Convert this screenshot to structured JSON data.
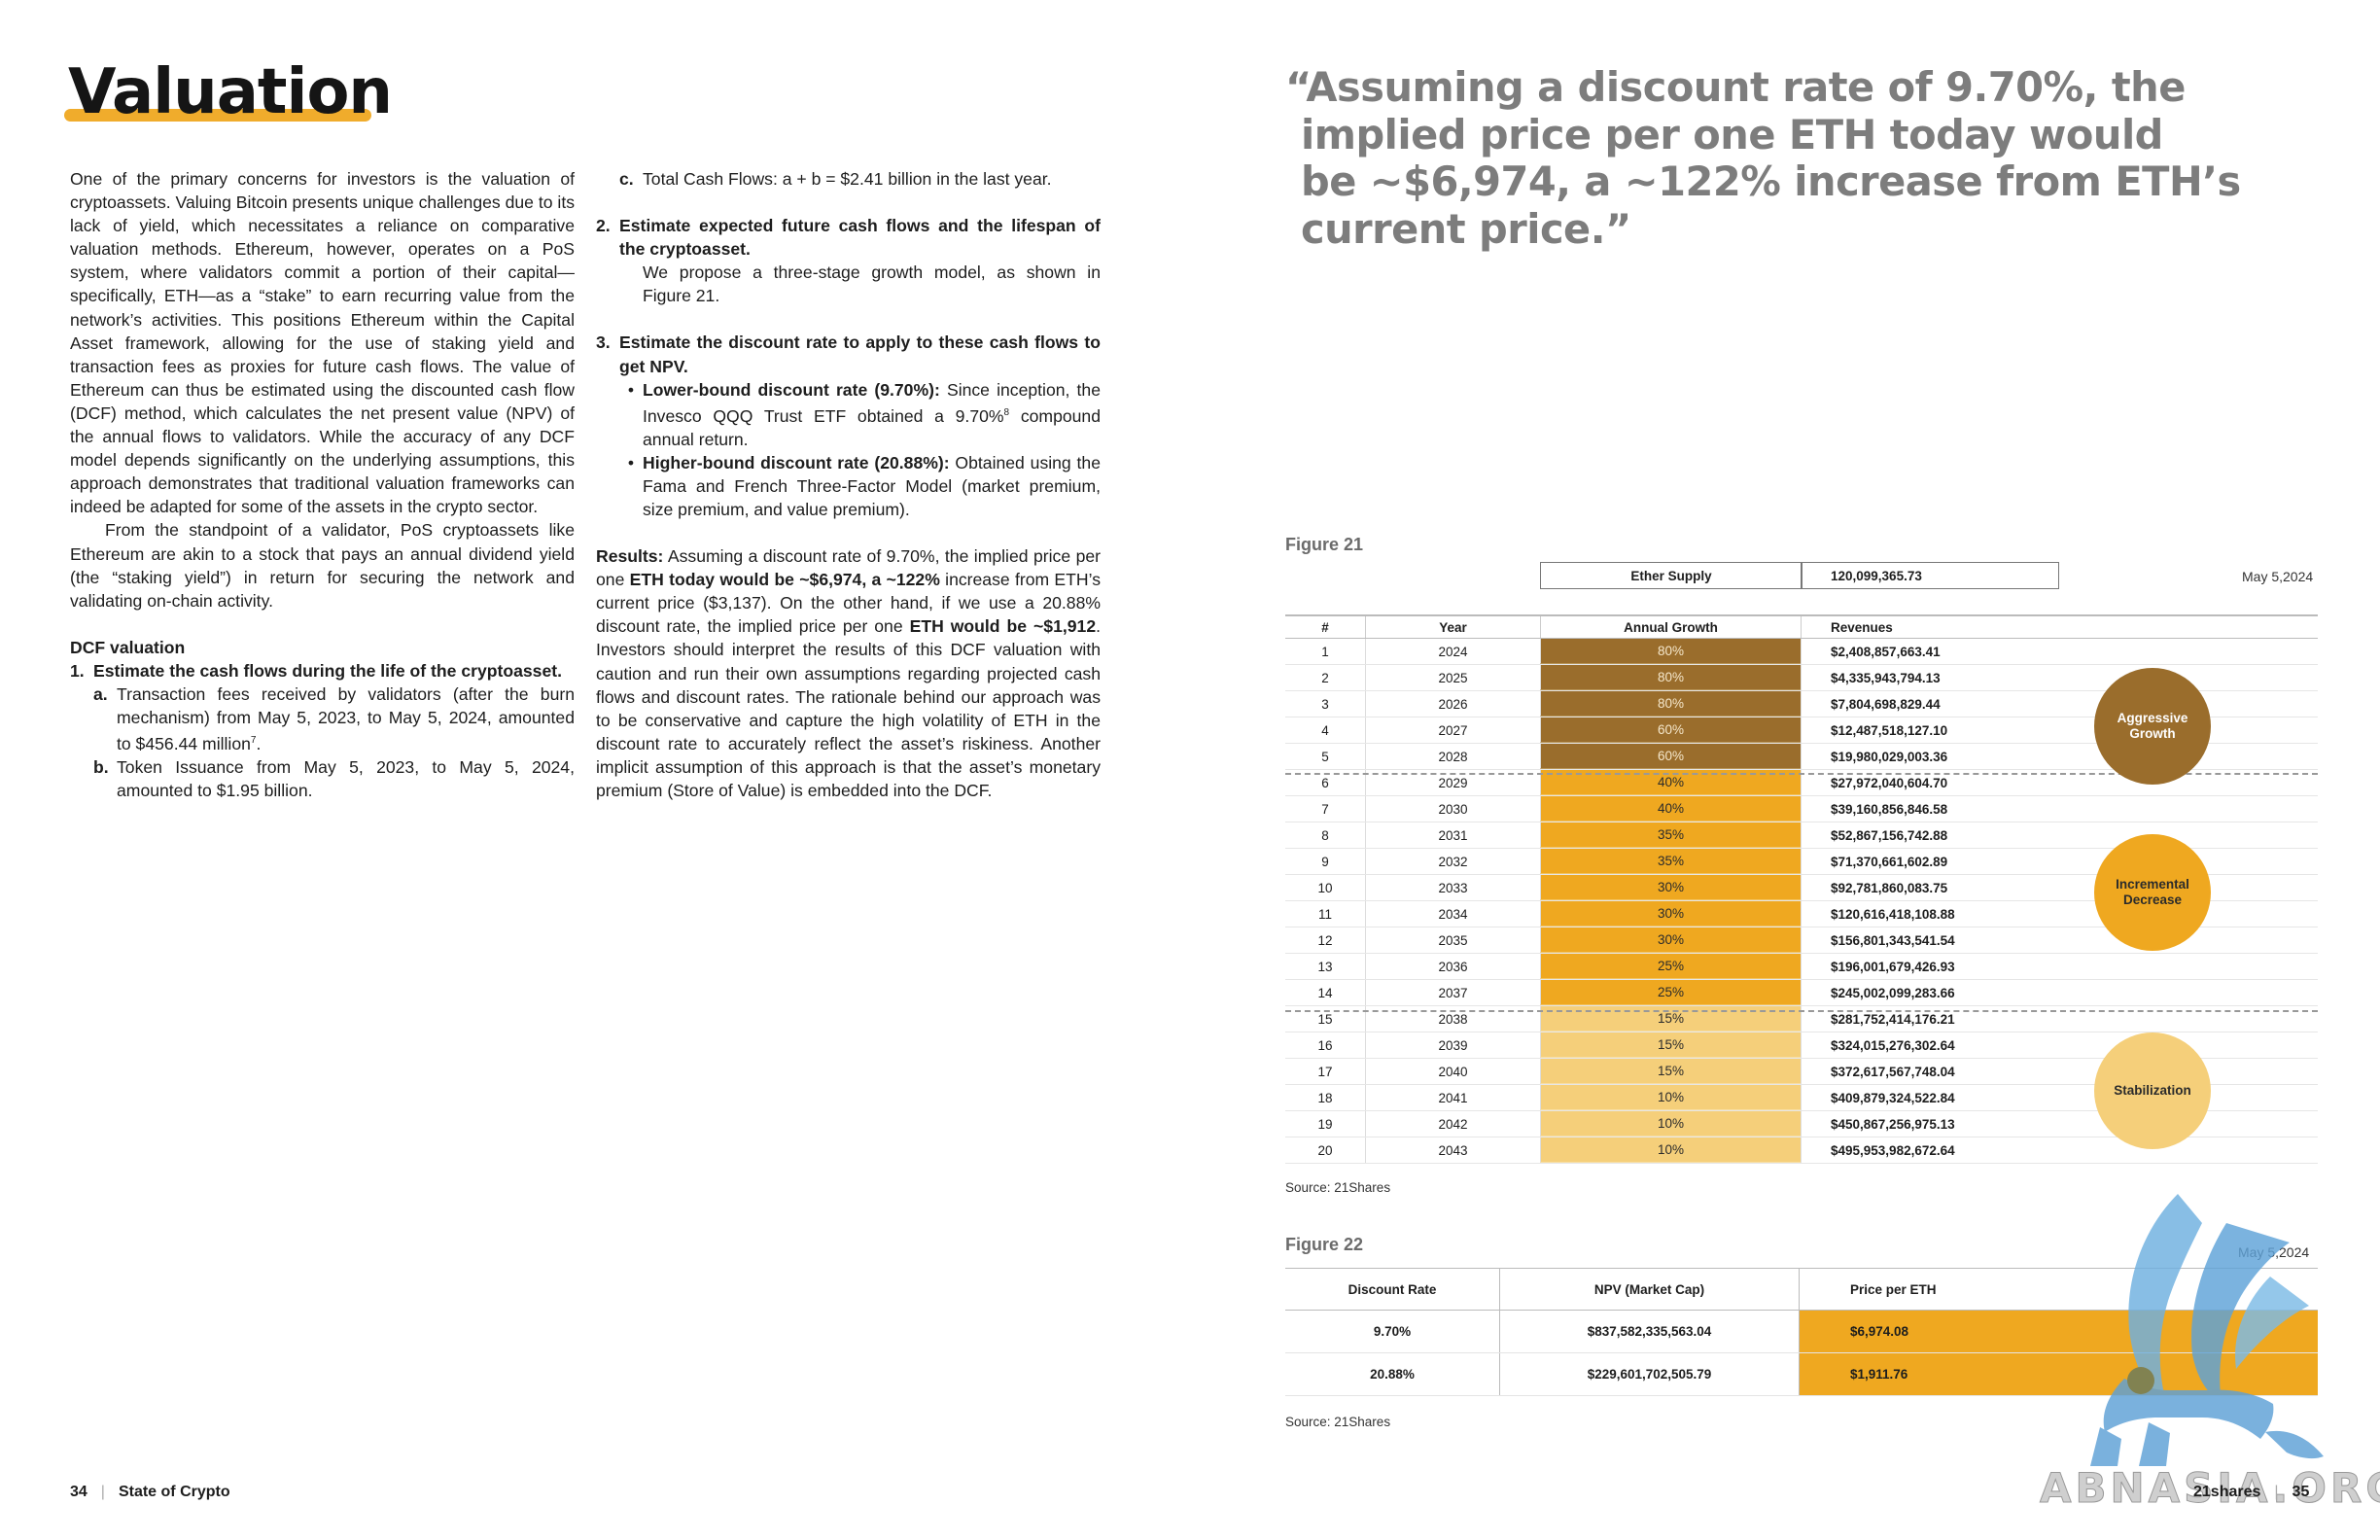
{
  "title": "Valuation",
  "col1": {
    "p1": "One of the primary concerns for investors is the valuation of cryptoassets. Valuing Bitcoin presents unique challenges due to its lack of yield, which necessitates a reliance on comparative valuation methods. Ethereum, however, operates on a PoS system, where validators commit a portion of their capital—specifically, ETH—as a “stake” to earn recurring value from the network’s activities. This positions Ethereum within the Capital Asset framework, allowing for the use of staking yield and transaction fees as proxies for future cash flows. The value of Ethereum can thus be estimated using the discounted cash flow (DCF) method, which calculates the net present value (NPV) of the annual flows to validators. While the accuracy of any DCF model depends significantly on the underlying assumptions, this approach demonstrates that traditional valuation frameworks can indeed be adapted for some of the assets in the crypto sector.",
    "p2": "From the standpoint of a validator, PoS cryptoassets like Ethereum are akin to a stock that pays an annual dividend yield (the “staking yield”) in return for securing the network and validating on-chain activity.",
    "dcf_heading": "DCF valuation",
    "step1_num": "1.",
    "step1": "Estimate the cash flows during the life of the cryptoasset.",
    "a_label": "a.",
    "a_text": "Transaction fees received by validators (after the burn mechanism) from May 5, 2023, to May 5, 2024, amounted to $456.44 million",
    "a_sup": "7",
    "b_label": "b.",
    "b_text": "Token Issuance from May 5, 2023, to May 5, 2024, amounted to $1.95 billion."
  },
  "col2": {
    "c_label": "c.",
    "c_text": "Total Cash Flows: a + b = $2.41 billion in the last year.",
    "step2_num": "2.",
    "step2": "Estimate expected future cash flows and the lifespan of the cryptoasset.",
    "step2_body": "We propose a three-stage growth model, as shown in Figure 21.",
    "step3_num": "3.",
    "step3": "Estimate the discount rate to apply to these cash flows to get NPV.",
    "bullet1_bold": "Lower-bound discount rate (9.70%):",
    "bullet1_text": " Since inception, the Invesco QQQ Trust ETF obtained a 9.70%",
    "bullet1_sup": "8",
    "bullet1_tail": " compound annual return.",
    "bullet2_bold": "Higher-bound discount rate (20.88%):",
    "bullet2_text": " Obtained using the Fama and French Three-Factor Model (market premium, size premium, and value premium).",
    "results_label": "Results:",
    "results_1": " Assuming a discount rate of 9.70%, the implied price per one ",
    "results_bold1": "ETH today would be ~$6,974, a ~122%",
    "results_2": " increase from ETH’s current price ($3,137). On the other hand, if we use a 20.88% discount rate, the implied price per one ",
    "results_bold2": "ETH would be ~$1,912",
    "results_3": ". Investors should interpret the results of this DCF valuation with caution and run their own assumptions regarding projected cash flows and discount rates. The rationale behind our approach was to be conservative and capture the high volatility of ETH in the discount rate to accurately reflect the asset’s riskiness. Another implicit assumption of this approach is that the asset’s monetary premium (Store of Value) is embedded into the DCF."
  },
  "footer_left": {
    "page": "34",
    "sep": "|",
    "label": "State of Crypto"
  },
  "quote": {
    "line1": "“Assuming a discount rate of 9.70%, the",
    "line2": "implied price per one ETH today would",
    "line3": "be ~$6,974, a ~122% increase from ETH’s",
    "line4": "current price.”"
  },
  "figure21": {
    "label": "Figure 21",
    "date": "May 5,2024",
    "supply_label": "Ether Supply",
    "supply_value": "120,099,365.73",
    "headers": [
      "#",
      "Year",
      "Annual Growth",
      "Revenues"
    ],
    "rows": [
      {
        "n": "1",
        "year": "2024",
        "growth": "80%",
        "rev": "$2,408,857,663.41",
        "stage": "dark"
      },
      {
        "n": "2",
        "year": "2025",
        "growth": "80%",
        "rev": "$4,335,943,794.13",
        "stage": "dark"
      },
      {
        "n": "3",
        "year": "2026",
        "growth": "80%",
        "rev": "$7,804,698,829.44",
        "stage": "dark"
      },
      {
        "n": "4",
        "year": "2027",
        "growth": "60%",
        "rev": "$12,487,518,127.10",
        "stage": "dark"
      },
      {
        "n": "5",
        "year": "2028",
        "growth": "60%",
        "rev": "$19,980,029,003.36",
        "stage": "dark"
      },
      {
        "n": "6",
        "year": "2029",
        "growth": "40%",
        "rev": "$27,972,040,604.70",
        "stage": "mid"
      },
      {
        "n": "7",
        "year": "2030",
        "growth": "40%",
        "rev": "$39,160,856,846.58",
        "stage": "mid"
      },
      {
        "n": "8",
        "year": "2031",
        "growth": "35%",
        "rev": "$52,867,156,742.88",
        "stage": "mid"
      },
      {
        "n": "9",
        "year": "2032",
        "growth": "35%",
        "rev": "$71,370,661,602.89",
        "stage": "mid"
      },
      {
        "n": "10",
        "year": "2033",
        "growth": "30%",
        "rev": "$92,781,860,083.75",
        "stage": "mid"
      },
      {
        "n": "11",
        "year": "2034",
        "growth": "30%",
        "rev": "$120,616,418,108.88",
        "stage": "mid"
      },
      {
        "n": "12",
        "year": "2035",
        "growth": "30%",
        "rev": "$156,801,343,541.54",
        "stage": "mid"
      },
      {
        "n": "13",
        "year": "2036",
        "growth": "25%",
        "rev": "$196,001,679,426.93",
        "stage": "mid"
      },
      {
        "n": "14",
        "year": "2037",
        "growth": "25%",
        "rev": "$245,002,099,283.66",
        "stage": "mid"
      },
      {
        "n": "15",
        "year": "2038",
        "growth": "15%",
        "rev": "$281,752,414,176.21",
        "stage": "light"
      },
      {
        "n": "16",
        "year": "2039",
        "growth": "15%",
        "rev": "$324,015,276,302.64",
        "stage": "light"
      },
      {
        "n": "17",
        "year": "2040",
        "growth": "15%",
        "rev": "$372,617,567,748.04",
        "stage": "light"
      },
      {
        "n": "18",
        "year": "2041",
        "growth": "10%",
        "rev": "$409,879,324,522.84",
        "stage": "light"
      },
      {
        "n": "19",
        "year": "2042",
        "growth": "10%",
        "rev": "$450,867,256,975.13",
        "stage": "light"
      },
      {
        "n": "20",
        "year": "2043",
        "growth": "10%",
        "rev": "$495,953,982,672.64",
        "stage": "light"
      }
    ],
    "stages": [
      {
        "label1": "Aggressive",
        "label2": "Growth",
        "color": "#9a6d2c"
      },
      {
        "label1": "Incremental",
        "label2": "Decrease",
        "color": "#efa820"
      },
      {
        "label1": "Stabilization",
        "label2": "",
        "color": "#f5cf7a"
      }
    ],
    "source": "Source: 21Shares"
  },
  "figure22": {
    "label": "Figure 22",
    "date": "May 5,2024",
    "headers": [
      "Discount Rate",
      "NPV (Market Cap)",
      "Price per ETH"
    ],
    "rows": [
      [
        "9.70%",
        "$837,582,335,563.04",
        "$6,974.08"
      ],
      [
        "20.88%",
        "$229,601,702,505.79",
        "$1,911.76"
      ]
    ],
    "source": "Source: 21Shares"
  },
  "footer_right": {
    "label": "21shares",
    "sep": "|",
    "page": "35"
  },
  "watermark_text": "ABNASIA.ORG",
  "colors": {
    "accent": "#f0ac2c",
    "dark_stage": "#9a6d2c",
    "mid_stage": "#efa820",
    "light_stage": "#f5cf7a",
    "watermark": "#6fb0e0"
  }
}
